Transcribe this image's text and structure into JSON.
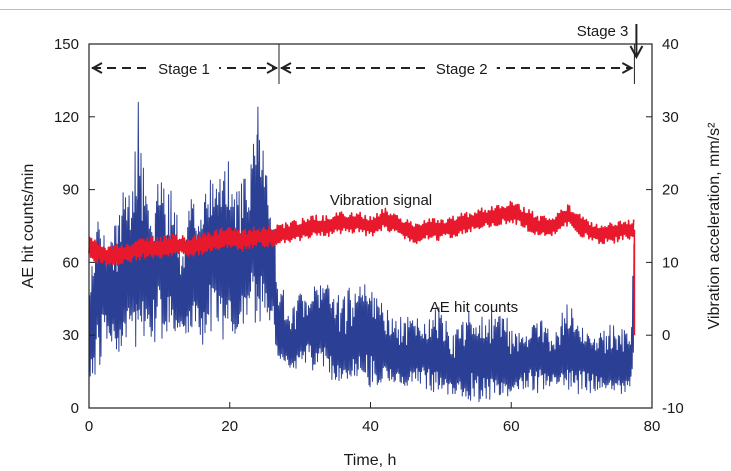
{
  "chart_data": {
    "type": "line",
    "xlabel": "Time, h",
    "ylabel_left": "AE hit counts/min",
    "ylabel_right": "Vibration acceleration, mm/s²",
    "xlim": [
      0,
      80
    ],
    "ylim_left": [
      0,
      150
    ],
    "ylim_right": [
      -10,
      40
    ],
    "xticks": [
      "0",
      "20",
      "40",
      "60",
      "80"
    ],
    "yticks_left": [
      "0",
      "30",
      "60",
      "90",
      "120",
      "150"
    ],
    "yticks_right": [
      "-10",
      "0",
      "10",
      "20",
      "30",
      "40"
    ],
    "colors": {
      "ae": "#2b3f94",
      "vibration": "#e8192c"
    },
    "series": [
      {
        "name": "AE hit counts",
        "axis": "left",
        "x": [
          0,
          1,
          2,
          3,
          4,
          5,
          6,
          7,
          8,
          9,
          10,
          11,
          12,
          13,
          14,
          15,
          16,
          17,
          18,
          19,
          20,
          21,
          22,
          23,
          24,
          25,
          26,
          27,
          28,
          29,
          30,
          32,
          34,
          36,
          38,
          40,
          42,
          44,
          46,
          48,
          50,
          52,
          54,
          56,
          58,
          60,
          62,
          64,
          66,
          68,
          70,
          72,
          74,
          76,
          77,
          77.5
        ],
        "low": [
          5,
          15,
          20,
          25,
          20,
          28,
          30,
          22,
          30,
          25,
          28,
          30,
          32,
          28,
          30,
          32,
          25,
          30,
          28,
          25,
          32,
          30,
          35,
          38,
          32,
          35,
          28,
          20,
          18,
          15,
          18,
          15,
          12,
          10,
          12,
          8,
          10,
          10,
          8,
          6,
          5,
          5,
          3,
          2,
          4,
          5,
          8,
          6,
          10,
          8,
          5,
          6,
          8,
          5,
          4,
          20
        ],
        "high": [
          55,
          80,
          75,
          70,
          78,
          95,
          108,
          126,
          90,
          80,
          100,
          92,
          88,
          80,
          82,
          90,
          85,
          95,
          92,
          98,
          110,
          108,
          95,
          105,
          124,
          110,
          85,
          55,
          45,
          42,
          48,
          50,
          52,
          45,
          55,
          50,
          42,
          40,
          38,
          35,
          45,
          32,
          40,
          38,
          42,
          35,
          30,
          38,
          32,
          45,
          35,
          30,
          35,
          33,
          32,
          85
        ],
        "peaks": [
          [
            7,
            126
          ],
          [
            24,
            124
          ]
        ]
      },
      {
        "name": "Vibration signal",
        "axis": "right",
        "x": [
          0,
          2,
          4,
          6,
          8,
          10,
          12,
          14,
          16,
          18,
          20,
          22,
          24,
          26,
          28,
          30,
          32,
          34,
          36,
          38,
          40,
          42,
          44,
          46,
          48,
          50,
          52,
          54,
          56,
          58,
          60,
          62,
          64,
          66,
          68,
          70,
          72,
          74,
          76,
          77.5
        ],
        "y": [
          12,
          11,
          11,
          11.5,
          12,
          12,
          12.5,
          12,
          12.5,
          13,
          13.5,
          13,
          13.5,
          13.5,
          14,
          14.5,
          15,
          15,
          15.5,
          15.5,
          15,
          16,
          15,
          14,
          14.5,
          14.5,
          15,
          15.5,
          16,
          16.5,
          17,
          16,
          15,
          15,
          16.5,
          15,
          14,
          14,
          14.5,
          14.5
        ],
        "band": 1.5
      }
    ],
    "annotations": [
      {
        "text": "Vibration signal",
        "x": 33,
        "y_left": 71
      },
      {
        "text": "AE hit counts",
        "x": 47,
        "y_left": 34
      }
    ],
    "stages": [
      {
        "label": "Stage 1",
        "from": 0,
        "to": 27
      },
      {
        "label": "Stage 2",
        "from": 27,
        "to": 77.5
      },
      {
        "label": "Stage 3",
        "at": 77.5
      }
    ]
  }
}
